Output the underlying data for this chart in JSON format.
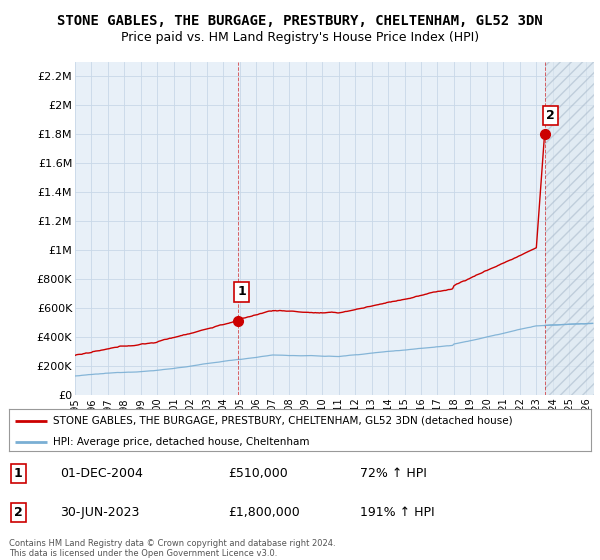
{
  "title_line1": "STONE GABLES, THE BURGAGE, PRESTBURY, CHELTENHAM, GL52 3DN",
  "title_line2": "Price paid vs. HM Land Registry's House Price Index (HPI)",
  "ytick_values": [
    0,
    200000,
    400000,
    600000,
    800000,
    1000000,
    1200000,
    1400000,
    1600000,
    1800000,
    2000000,
    2200000
  ],
  "ylim": [
    0,
    2300000
  ],
  "xlim_start": 1995.0,
  "xlim_end": 2026.5,
  "red_line_color": "#cc0000",
  "blue_line_color": "#7aafd4",
  "marker1_x": 2004.917,
  "marker1_y": 510000,
  "marker2_x": 2023.5,
  "marker2_y": 1800000,
  "annotation1_label": "1",
  "annotation2_label": "2",
  "legend_red_label": "STONE GABLES, THE BURGAGE, PRESTBURY, CHELTENHAM, GL52 3DN (detached house)",
  "legend_blue_label": "HPI: Average price, detached house, Cheltenham",
  "table_row1": [
    "1",
    "01-DEC-2004",
    "£510,000",
    "72% ↑ HPI"
  ],
  "table_row2": [
    "2",
    "30-JUN-2023",
    "£1,800,000",
    "191% ↑ HPI"
  ],
  "footnote1": "Contains HM Land Registry data © Crown copyright and database right 2024.",
  "footnote2": "This data is licensed under the Open Government Licence v3.0.",
  "background_color": "#ffffff",
  "grid_color": "#c8d8e8"
}
